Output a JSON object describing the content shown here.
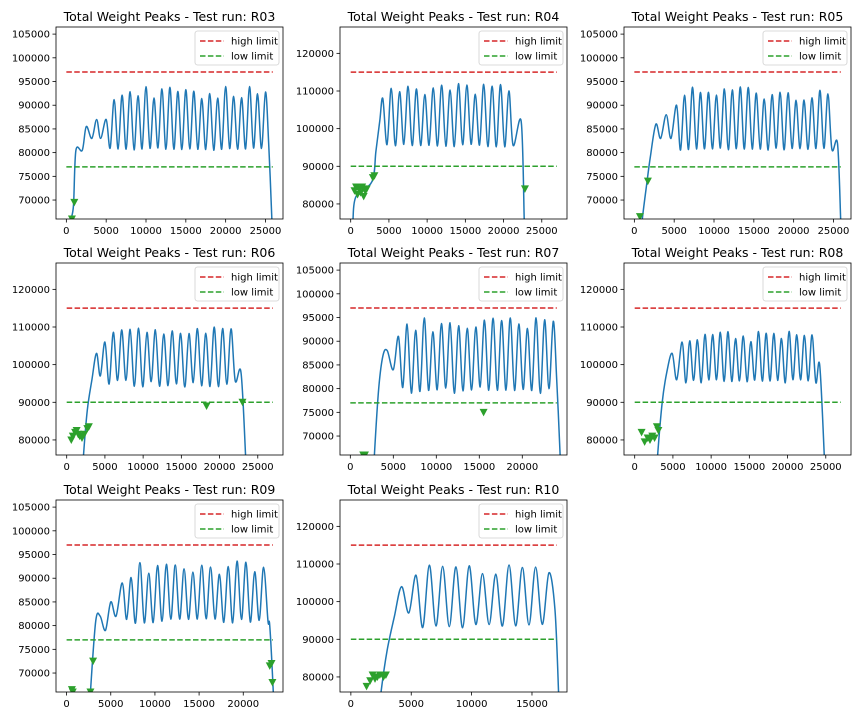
{
  "chart_data": [
    {
      "type": "line",
      "title": "Total Weight Peaks - Test run: R03",
      "xlabel": "",
      "ylabel": "",
      "xlim": [
        -1300,
        27200
      ],
      "ylim": [
        66000,
        106500
      ],
      "xticks": [
        0,
        5000,
        10000,
        15000,
        20000,
        25000
      ],
      "yticks": [
        70000,
        75000,
        80000,
        85000,
        90000,
        95000,
        100000,
        105000
      ],
      "high_limit": 97000,
      "low_limit": 77000,
      "legend": [
        "high limit",
        "low limit"
      ],
      "legend_position": "top-right",
      "signal": {
        "ramp": [
          [
            600,
            66000
          ],
          [
            900,
            69000
          ],
          [
            1200,
            80500
          ],
          [
            2000,
            80500
          ],
          [
            2500,
            85500
          ],
          [
            3200,
            83000
          ],
          [
            3800,
            87000
          ],
          [
            4300,
            83000
          ],
          [
            5000,
            87000
          ]
        ],
        "cycle_start": 5000,
        "cycle_end": 24800,
        "period": 1000,
        "upper": [
          91000,
          94000
        ],
        "lower": [
          80500,
          81000
        ],
        "tail": [
          [
            25400,
            82000
          ],
          [
            25800,
            66000
          ]
        ]
      },
      "markers": [
        [
          700,
          66000
        ],
        [
          1000,
          69500
        ]
      ]
    },
    {
      "type": "line",
      "title": "Total Weight Peaks - Test run: R04",
      "xlabel": "",
      "ylabel": "",
      "xlim": [
        -1400,
        28300
      ],
      "ylim": [
        76000,
        127000
      ],
      "xticks": [
        0,
        5000,
        10000,
        15000,
        20000,
        25000
      ],
      "yticks": [
        80000,
        90000,
        100000,
        110000,
        120000
      ],
      "high_limit": 115000,
      "low_limit": 90000,
      "legend": [
        "high limit",
        "low limit"
      ],
      "legend_position": "top-right",
      "signal": {
        "ramp": [
          [
            300,
            76000
          ],
          [
            700,
            82000
          ],
          [
            2800,
            86000
          ],
          [
            3300,
            94000
          ],
          [
            3800,
            102000
          ],
          [
            4200,
            108000
          ]
        ],
        "cycle_start": 4200,
        "cycle_end": 21500,
        "period": 1100,
        "upper": [
          109000,
          112000
        ],
        "lower": [
          95000,
          96000
        ],
        "tail": [
          [
            22300,
            102000
          ],
          [
            22700,
            76000
          ]
        ]
      },
      "markers": [
        [
          500,
          83500
        ],
        [
          700,
          84500
        ],
        [
          900,
          82500
        ],
        [
          1100,
          84000
        ],
        [
          1300,
          83000
        ],
        [
          1500,
          84500
        ],
        [
          1700,
          82000
        ],
        [
          1900,
          83500
        ],
        [
          2100,
          84000
        ],
        [
          2900,
          87000
        ],
        [
          3100,
          87500
        ],
        [
          22800,
          84000
        ]
      ]
    },
    {
      "type": "line",
      "title": "Total Weight Peaks - Test run: R05",
      "xlabel": "",
      "ylabel": "",
      "xlim": [
        -1300,
        27200
      ],
      "ylim": [
        66000,
        106500
      ],
      "xticks": [
        0,
        5000,
        10000,
        15000,
        20000,
        25000
      ],
      "yticks": [
        70000,
        75000,
        80000,
        85000,
        90000,
        95000,
        100000,
        105000
      ],
      "high_limit": 97000,
      "low_limit": 77000,
      "legend": [
        "high limit",
        "low limit"
      ],
      "legend_position": "top-right",
      "signal": {
        "ramp": [
          [
            1000,
            66000
          ],
          [
            1600,
            74000
          ],
          [
            2000,
            79000
          ],
          [
            2700,
            86000
          ],
          [
            3300,
            83000
          ],
          [
            4000,
            88000
          ],
          [
            4600,
            83000
          ],
          [
            5300,
            90000
          ]
        ],
        "cycle_start": 5300,
        "cycle_end": 24900,
        "period": 1000,
        "upper": [
          91000,
          94000
        ],
        "lower": [
          80500,
          81000
        ],
        "tail": [
          [
            25500,
            82000
          ],
          [
            25900,
            66000
          ]
        ]
      },
      "markers": [
        [
          700,
          66500
        ],
        [
          1700,
          74000
        ]
      ]
    },
    {
      "type": "line",
      "title": "Total Weight Peaks - Test run: R06",
      "xlabel": "",
      "ylabel": "",
      "xlim": [
        -1400,
        28300
      ],
      "ylim": [
        76000,
        127000
      ],
      "xticks": [
        0,
        5000,
        10000,
        15000,
        20000,
        25000
      ],
      "yticks": [
        80000,
        90000,
        100000,
        110000,
        120000
      ],
      "high_limit": 115000,
      "low_limit": 90000,
      "legend": [
        "high limit",
        "low limit"
      ],
      "legend_position": "top-right",
      "signal": {
        "ramp": [
          [
            2200,
            76000
          ],
          [
            2700,
            88000
          ],
          [
            3300,
            96000
          ],
          [
            3900,
            103000
          ],
          [
            4400,
            97000
          ],
          [
            5000,
            106000
          ]
        ],
        "cycle_start": 5000,
        "cycle_end": 22200,
        "period": 1100,
        "upper": [
          108000,
          110000
        ],
        "lower": [
          94000,
          96000
        ],
        "tail": [
          [
            22800,
            98000
          ],
          [
            23400,
            76000
          ]
        ]
      },
      "markers": [
        [
          600,
          80000
        ],
        [
          800,
          81000
        ],
        [
          1100,
          82000
        ],
        [
          1300,
          82500
        ],
        [
          1500,
          81500
        ],
        [
          1700,
          81000
        ],
        [
          2000,
          80500
        ],
        [
          2300,
          81500
        ],
        [
          2700,
          83000
        ],
        [
          2900,
          83500
        ],
        [
          18300,
          89000
        ],
        [
          23000,
          90000
        ]
      ]
    },
    {
      "type": "line",
      "title": "Total Weight Peaks - Test run: R07",
      "xlabel": "",
      "ylabel": "",
      "xlim": [
        -1200,
        25200
      ],
      "ylim": [
        66000,
        106500
      ],
      "xticks": [
        0,
        5000,
        10000,
        15000,
        20000
      ],
      "yticks": [
        70000,
        75000,
        80000,
        85000,
        90000,
        95000,
        100000,
        105000
      ],
      "high_limit": 97000,
      "low_limit": 77000,
      "legend": [
        "high limit",
        "low limit"
      ],
      "legend_position": "top-right",
      "signal": {
        "ramp": [
          [
            2800,
            66000
          ],
          [
            3300,
            80000
          ],
          [
            3800,
            87000
          ],
          [
            4300,
            88000
          ],
          [
            5000,
            84000
          ],
          [
            5600,
            91000
          ]
        ],
        "cycle_start": 5600,
        "cycle_end": 23600,
        "period": 1000,
        "upper": [
          92000,
          95000
        ],
        "lower": [
          79000,
          80500
        ],
        "tail": [
          [
            24000,
            82000
          ],
          [
            24400,
            66000
          ]
        ]
      },
      "markers": [
        [
          1500,
          66000
        ],
        [
          1700,
          66000
        ],
        [
          15500,
          75000
        ]
      ]
    },
    {
      "type": "line",
      "title": "Total Weight Peaks - Test run: R08",
      "xlabel": "",
      "ylabel": "",
      "xlim": [
        -1400,
        28300
      ],
      "ylim": [
        76000,
        127000
      ],
      "xticks": [
        0,
        5000,
        10000,
        15000,
        20000,
        25000
      ],
      "yticks": [
        80000,
        90000,
        100000,
        110000,
        120000
      ],
      "high_limit": 115000,
      "low_limit": 90000,
      "legend": [
        "high limit",
        "low limit"
      ],
      "legend_position": "top-right",
      "signal": {
        "ramp": [
          [
            3000,
            76000
          ],
          [
            3600,
            90000
          ],
          [
            4200,
            98000
          ],
          [
            4900,
            103000
          ],
          [
            5500,
            96000
          ],
          [
            6200,
            106000
          ]
        ],
        "cycle_start": 6200,
        "cycle_end": 23500,
        "period": 1000,
        "upper": [
          106000,
          109000
        ],
        "lower": [
          95000,
          96000
        ],
        "tail": [
          [
            24200,
            100000
          ],
          [
            24800,
            76000
          ]
        ]
      },
      "markers": [
        [
          900,
          82000
        ],
        [
          1300,
          79500
        ],
        [
          1700,
          80500
        ],
        [
          2000,
          80000
        ],
        [
          2300,
          81000
        ],
        [
          2600,
          80500
        ],
        [
          2900,
          83500
        ],
        [
          3100,
          82500
        ]
      ]
    },
    {
      "type": "line",
      "title": "Total Weight Peaks - Test run: R09",
      "xlabel": "",
      "ylabel": "",
      "xlim": [
        -1200,
        24500
      ],
      "ylim": [
        66000,
        106500
      ],
      "xticks": [
        0,
        5000,
        10000,
        15000,
        20000
      ],
      "yticks": [
        70000,
        75000,
        80000,
        85000,
        90000,
        95000,
        100000,
        105000
      ],
      "high_limit": 97000,
      "low_limit": 77000,
      "legend": [
        "high limit",
        "low limit"
      ],
      "legend_position": "top-right",
      "signal": {
        "ramp": [
          [
            2700,
            66000
          ],
          [
            3300,
            81000
          ],
          [
            3800,
            82000
          ],
          [
            4400,
            79000
          ],
          [
            5000,
            85000
          ],
          [
            5600,
            82000
          ],
          [
            6300,
            89000
          ]
        ],
        "cycle_start": 6300,
        "cycle_end": 22600,
        "period": 1000,
        "upper": [
          90000,
          94000
        ],
        "lower": [
          80500,
          81500
        ],
        "tail": [
          [
            23000,
            80000
          ],
          [
            23400,
            66000
          ]
        ]
      },
      "markers": [
        [
          600,
          66500
        ],
        [
          700,
          66000
        ],
        [
          2700,
          66000
        ],
        [
          3000,
          72500
        ],
        [
          23000,
          71500
        ],
        [
          23200,
          72000
        ],
        [
          23300,
          68000
        ]
      ]
    },
    {
      "type": "line",
      "title": "Total Weight Peaks - Test run: R10",
      "xlabel": "",
      "ylabel": "",
      "xlim": [
        -900,
        17900
      ],
      "ylim": [
        76000,
        127000
      ],
      "xticks": [
        0,
        5000,
        10000,
        15000
      ],
      "yticks": [
        80000,
        90000,
        100000,
        110000,
        120000
      ],
      "high_limit": 115000,
      "low_limit": 90000,
      "legend": [
        "high limit",
        "low limit"
      ],
      "legend_position": "top-right",
      "signal": {
        "ramp": [
          [
            2500,
            76000
          ],
          [
            3000,
            87000
          ],
          [
            3600,
            96000
          ],
          [
            4200,
            104000
          ],
          [
            4800,
            97000
          ],
          [
            5400,
            107000
          ]
        ],
        "cycle_start": 5400,
        "cycle_end": 16600,
        "period": 1100,
        "upper": [
          107000,
          110000
        ],
        "lower": [
          93000,
          94000
        ],
        "tail": [
          [
            16900,
            98000
          ],
          [
            17200,
            76000
          ]
        ]
      },
      "markers": [
        [
          1300,
          77500
        ],
        [
          1600,
          79000
        ],
        [
          1800,
          80500
        ],
        [
          2000,
          79500
        ],
        [
          2200,
          80000
        ],
        [
          2400,
          80500
        ],
        [
          2700,
          80000
        ],
        [
          2900,
          80500
        ]
      ]
    }
  ],
  "colors": {
    "signal": "#1f77b4",
    "high": "#d62728",
    "low": "#2ca02c",
    "markers": "#2ca02c"
  }
}
